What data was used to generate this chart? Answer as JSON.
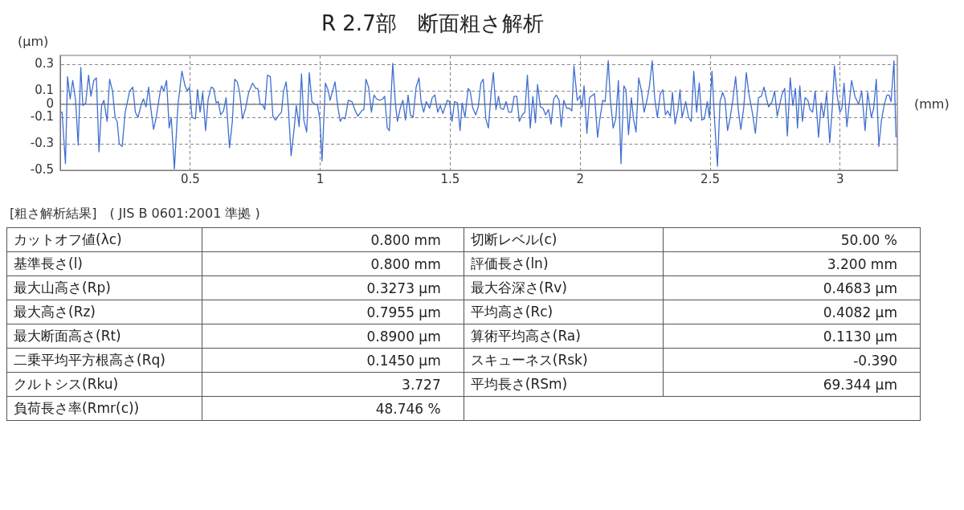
{
  "chart_data": [
    {
      "type": "line",
      "title": "R 2.7部　断面粗さ解析",
      "xlabel": "(mm)",
      "ylabel": "(μm)",
      "xlim": [
        0,
        3.22
      ],
      "ylim": [
        -0.5,
        0.37
      ],
      "xticks": [
        0.5,
        1,
        1.5,
        2,
        2.5,
        3
      ],
      "yticks": [
        -0.5,
        -0.3,
        -0.1,
        0,
        0.1,
        0.3
      ],
      "grid": true,
      "legend": false,
      "marker": "none",
      "line_style": "solid",
      "ref_lines": [
        {
          "axis": "y",
          "value": 0,
          "color": "#707070"
        }
      ],
      "series": [
        {
          "color": "#3f6fd0",
          "x": [
            0.0,
            0.007,
            0.02,
            0.028,
            0.038,
            0.048,
            0.059,
            0.069,
            0.079,
            0.087,
            0.098,
            0.109,
            0.118,
            0.129,
            0.139,
            0.149,
            0.159,
            0.168,
            0.18,
            0.19,
            0.201,
            0.211,
            0.219,
            0.227,
            0.238,
            0.25,
            0.267,
            0.279,
            0.289,
            0.299,
            0.312,
            0.32,
            0.33,
            0.34,
            0.349,
            0.359,
            0.369,
            0.384,
            0.39,
            0.398,
            0.409,
            0.419,
            0.427,
            0.439,
            0.453,
            0.468,
            0.48,
            0.489,
            0.497,
            0.507,
            0.52,
            0.528,
            0.538,
            0.548,
            0.559,
            0.569,
            0.581,
            0.59,
            0.6,
            0.608,
            0.617,
            0.628,
            0.638,
            0.651,
            0.662,
            0.671,
            0.681,
            0.69,
            0.701,
            0.713,
            0.725,
            0.74,
            0.752,
            0.76,
            0.769,
            0.777,
            0.787,
            0.797,
            0.808,
            0.818,
            0.828,
            0.838,
            0.851,
            0.859,
            0.869,
            0.878,
            0.888,
            0.9,
            0.908,
            0.919,
            0.928,
            0.937,
            0.948,
            0.958,
            0.968,
            0.978,
            0.989,
            0.999,
            1.007,
            1.02,
            1.03,
            1.038,
            1.057,
            1.067,
            1.077,
            1.085,
            1.096,
            1.108,
            1.122,
            1.133,
            1.145,
            1.159,
            1.168,
            1.176,
            1.186,
            1.197,
            1.207,
            1.217,
            1.229,
            1.24,
            1.248,
            1.258,
            1.266,
            1.279,
            1.289,
            1.297,
            1.308,
            1.318,
            1.328,
            1.338,
            1.347,
            1.357,
            1.369,
            1.38,
            1.388,
            1.398,
            1.408,
            1.421,
            1.431,
            1.441,
            1.452,
            1.462,
            1.472,
            1.489,
            1.497,
            1.507,
            1.517,
            1.528,
            1.538,
            1.546,
            1.557,
            1.569,
            1.577,
            1.587,
            1.598,
            1.608,
            1.618,
            1.627,
            1.637,
            1.647,
            1.657,
            1.666,
            1.676,
            1.686,
            1.694,
            1.705,
            1.715,
            1.725,
            1.736,
            1.746,
            1.756,
            1.766,
            1.777,
            1.787,
            1.797,
            1.808,
            1.818,
            1.828,
            1.836,
            1.847,
            1.857,
            1.867,
            1.878,
            1.888,
            1.898,
            1.908,
            1.919,
            1.927,
            1.937,
            1.948,
            1.958,
            1.968,
            1.976,
            1.989,
            1.999,
            2.007,
            2.015,
            2.026,
            2.036,
            2.055,
            2.067,
            2.075,
            2.087,
            2.096,
            2.108,
            2.116,
            2.127,
            2.137,
            2.147,
            2.157,
            2.168,
            2.176,
            2.186,
            2.197,
            2.205,
            2.215,
            2.225,
            2.236,
            2.246,
            2.258,
            2.266,
            2.277,
            2.287,
            2.297,
            2.308,
            2.318,
            2.328,
            2.336,
            2.347,
            2.355,
            2.365,
            2.376,
            2.384,
            2.392,
            2.406,
            2.417,
            2.427,
            2.437,
            2.448,
            2.458,
            2.468,
            2.478,
            2.489,
            2.497,
            2.507,
            2.517,
            2.528,
            2.538,
            2.548,
            2.557,
            2.567,
            2.577,
            2.587,
            2.598,
            2.608,
            2.618,
            2.629,
            2.639,
            2.649,
            2.662,
            2.674,
            2.686,
            2.697,
            2.707,
            2.717,
            2.725,
            2.738,
            2.748,
            2.758,
            2.769,
            2.777,
            2.787,
            2.797,
            2.808,
            2.818,
            2.828,
            2.836,
            2.845,
            2.855,
            2.865,
            2.876,
            2.884,
            2.894,
            2.904,
            2.917,
            2.927,
            2.937,
            2.948,
            2.96,
            2.97,
            2.978,
            2.989,
            2.999,
            3.007,
            3.015,
            3.026,
            3.044,
            3.057,
            3.071,
            3.083,
            3.096,
            3.106,
            3.12,
            3.129,
            3.139,
            3.149,
            3.159,
            3.17,
            3.18,
            3.188,
            3.196,
            3.207,
            3.215
          ],
          "values": [
            -0.06,
            -0.06,
            -0.45,
            0.21,
            0.04,
            0.18,
            0.03,
            -0.31,
            0.28,
            -0.01,
            0.01,
            0.22,
            0.06,
            0.18,
            0.2,
            -0.36,
            -0.01,
            0.03,
            -0.13,
            0.19,
            0.1,
            -0.1,
            -0.13,
            -0.3,
            -0.32,
            -0.06,
            0.1,
            0.13,
            -0.06,
            -0.1,
            0.0,
            0.04,
            -0.02,
            0.13,
            -0.04,
            -0.19,
            -0.1,
            0.09,
            0.14,
            0.1,
            0.18,
            -0.18,
            -0.1,
            -0.49,
            0.0,
            0.25,
            0.14,
            0.1,
            0.13,
            -0.1,
            -0.11,
            0.11,
            -0.06,
            0.09,
            -0.2,
            0.04,
            0.13,
            0.12,
            0.01,
            0.02,
            -0.08,
            -0.05,
            0.05,
            -0.33,
            -0.13,
            0.19,
            0.17,
            0.09,
            -0.11,
            -0.03,
            0.09,
            0.16,
            0.12,
            0.12,
            0.0,
            0.0,
            -0.04,
            0.22,
            0.21,
            -0.09,
            -0.12,
            -0.09,
            -0.06,
            0.1,
            0.17,
            -0.04,
            -0.39,
            -0.18,
            -0.01,
            -0.17,
            0.23,
            -0.12,
            -0.21,
            0.24,
            0.02,
            0.0,
            0.0,
            -0.12,
            -0.43,
            0.16,
            0.11,
            0.03,
            0.17,
            -0.01,
            -0.13,
            -0.1,
            -0.11,
            0.03,
            0.02,
            -0.04,
            -0.09,
            -0.05,
            -0.04,
            0.19,
            0.13,
            -0.06,
            0.07,
            0.04,
            0.03,
            0.04,
            0.06,
            -0.18,
            -0.2,
            0.31,
            0.01,
            -0.13,
            -0.03,
            0.03,
            -0.12,
            0.07,
            -0.08,
            -0.1,
            0.13,
            0.2,
            0.02,
            -0.06,
            0.02,
            -0.03,
            0.05,
            0.07,
            -0.06,
            -0.01,
            -0.07,
            0.03,
            0.02,
            -0.13,
            0.02,
            0.01,
            -0.2,
            0.01,
            -0.1,
            0.12,
            0.1,
            -0.03,
            -0.08,
            -0.02,
            0.16,
            0.19,
            -0.11,
            -0.18,
            0.08,
            0.24,
            -0.04,
            0.06,
            -0.03,
            -0.04,
            0.02,
            -0.06,
            -0.06,
            0.06,
            0.06,
            -0.13,
            -0.08,
            -0.06,
            0.22,
            -0.18,
            0.06,
            -0.14,
            0.15,
            -0.02,
            -0.03,
            -0.08,
            -0.04,
            -0.15,
            0.04,
            0.07,
            0.03,
            -0.17,
            0.03,
            -0.03,
            -0.03,
            -0.05,
            0.29,
            0.03,
            0.06,
            -0.02,
            0.14,
            -0.22,
            0.05,
            0.08,
            -0.25,
            -0.12,
            0.03,
            0.02,
            0.33,
            0.04,
            -0.18,
            -0.11,
            0.18,
            -0.45,
            0.14,
            0.11,
            -0.23,
            0.05,
            -0.11,
            -0.21,
            0.2,
            0.1,
            -0.06,
            0.04,
            0.13,
            0.33,
            0.04,
            -0.1,
            0.08,
            0.11,
            -0.08,
            -0.05,
            -0.09,
            0.09,
            -0.15,
            -0.04,
            0.11,
            -0.1,
            0.02,
            -0.1,
            -0.13,
            0.25,
            -0.06,
            0.16,
            -0.12,
            -0.11,
            0.02,
            -0.1,
            0.25,
            -0.12,
            -0.47,
            0.02,
            0.09,
            0.04,
            -0.2,
            -0.1,
            0.03,
            0.21,
            -0.04,
            -0.19,
            -0.03,
            0.24,
            0.08,
            -0.06,
            -0.22,
            0.05,
            0.06,
            0.13,
            0.04,
            -0.02,
            0.02,
            0.1,
            -0.09,
            0.01,
            0.08,
            0.12,
            -0.24,
            0.2,
            -0.01,
            0.12,
            -0.18,
            0.14,
            -0.13,
            0.05,
            0.03,
            -0.04,
            -0.06,
            0.1,
            -0.25,
            0.01,
            -0.1,
            0.09,
            -0.29,
            -0.02,
            0.29,
            0.06,
            -0.06,
            -0.03,
            0.16,
            -0.17,
            0.18,
            0.06,
            0.0,
            0.1,
            -0.2,
            0.09,
            -0.1,
            -0.03,
            0.19,
            -0.32,
            -0.12,
            0.0,
            0.07,
            0.07,
            0.02,
            0.33,
            -0.25
          ]
        }
      ]
    },
    {
      "type": "other",
      "title": "[粗さ解析結果]　( JIS B 0601:2001 準拠 )",
      "annotations": [
        "カットオフ値(λc)",
        "0.800 mm",
        "切断レベル(c)",
        "50.00 %",
        "基準長さ(l)",
        "0.800 mm",
        "評価長さ(ln)",
        "3.200 mm",
        "最大山高さ(Rp)",
        "0.3273 μm",
        "最大谷深さ(Rv)",
        "0.4683 μm",
        "最大高さ(Rz)",
        "0.7955 μm",
        "平均高さ(Rc)",
        "0.4082 μm",
        "最大断面高さ(Rt)",
        "0.8900 μm",
        "算術平均高さ(Ra)",
        "0.1130 μm",
        "二乗平均平方根高さ(Rq)",
        "0.1450 μm",
        "スキューネス(Rsk)",
        "-0.390",
        "クルトシス(Rku)",
        "3.727",
        "平均長さ(RSm)",
        "69.344 μm",
        "負荷長さ率(Rmr(c))",
        "48.746 %"
      ]
    }
  ]
}
